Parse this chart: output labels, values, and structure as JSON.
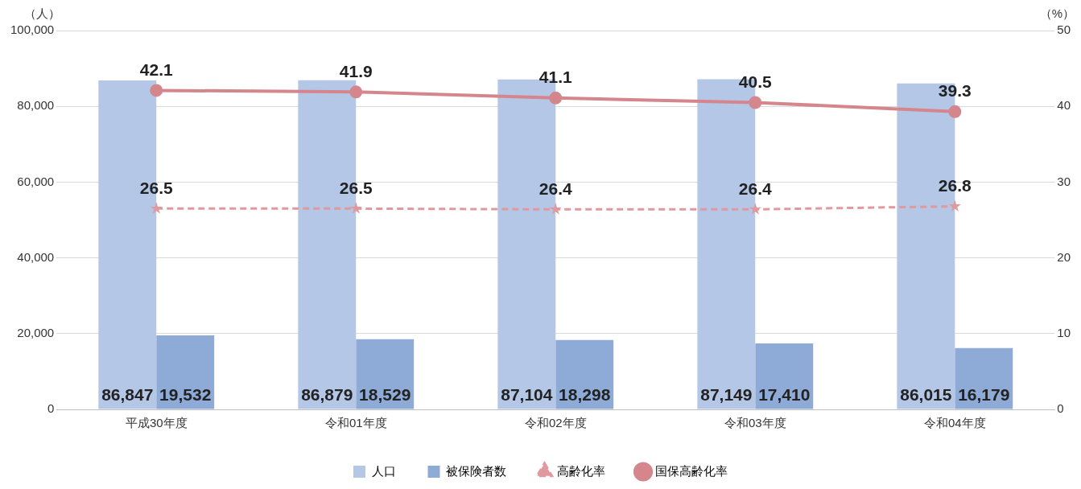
{
  "chart_data": {
    "type": "bar",
    "categories": [
      "平成30年度",
      "令和01年度",
      "令和02年度",
      "令和03年度",
      "令和04年度"
    ],
    "series": [
      {
        "name": "人口",
        "color": "#b4c7e7",
        "values": [
          86847,
          86879,
          87104,
          87149,
          86015
        ],
        "value_labels": [
          "86,847",
          "86,879",
          "87,104",
          "87,149",
          "86,015"
        ]
      },
      {
        "name": "被保険者数",
        "color": "#8eaad6",
        "values": [
          19532,
          18529,
          18298,
          17410,
          16179
        ],
        "value_labels": [
          "19,532",
          "18,529",
          "18,298",
          "17,410",
          "16,179"
        ]
      },
      {
        "name": "高齢化率",
        "type": "line",
        "axis": "y2",
        "color": "#e0999e",
        "marker": "star",
        "line_style": "dashed",
        "values": [
          26.5,
          26.5,
          26.4,
          26.4,
          26.8
        ],
        "value_labels": [
          "26.5",
          "26.5",
          "26.4",
          "26.4",
          "26.8"
        ]
      },
      {
        "name": "国保高齢化率",
        "type": "line",
        "axis": "y2",
        "color": "#d4868c",
        "marker": "circle",
        "line_style": "solid",
        "values": [
          42.1,
          41.9,
          41.1,
          40.5,
          39.3
        ],
        "value_labels": [
          "42.1",
          "41.9",
          "41.1",
          "40.5",
          "39.3"
        ]
      }
    ],
    "ylim": [
      0,
      100000
    ],
    "yticks": [
      0,
      {
        "value": 20000,
        "label": "20,000"
      },
      {
        "value": 40000,
        "label": "40,000"
      },
      {
        "value": 60000,
        "label": "60,000"
      },
      {
        "value": 80000,
        "label": "80,000"
      },
      {
        "value": 100000,
        "label": "100,000"
      }
    ],
    "y2lim": [
      0,
      50
    ],
    "y2ticks": [
      0,
      10,
      20,
      30,
      40,
      50
    ],
    "ylabel": "（人）",
    "y2label": "（%）",
    "grid": "y",
    "legend": "bottom"
  }
}
